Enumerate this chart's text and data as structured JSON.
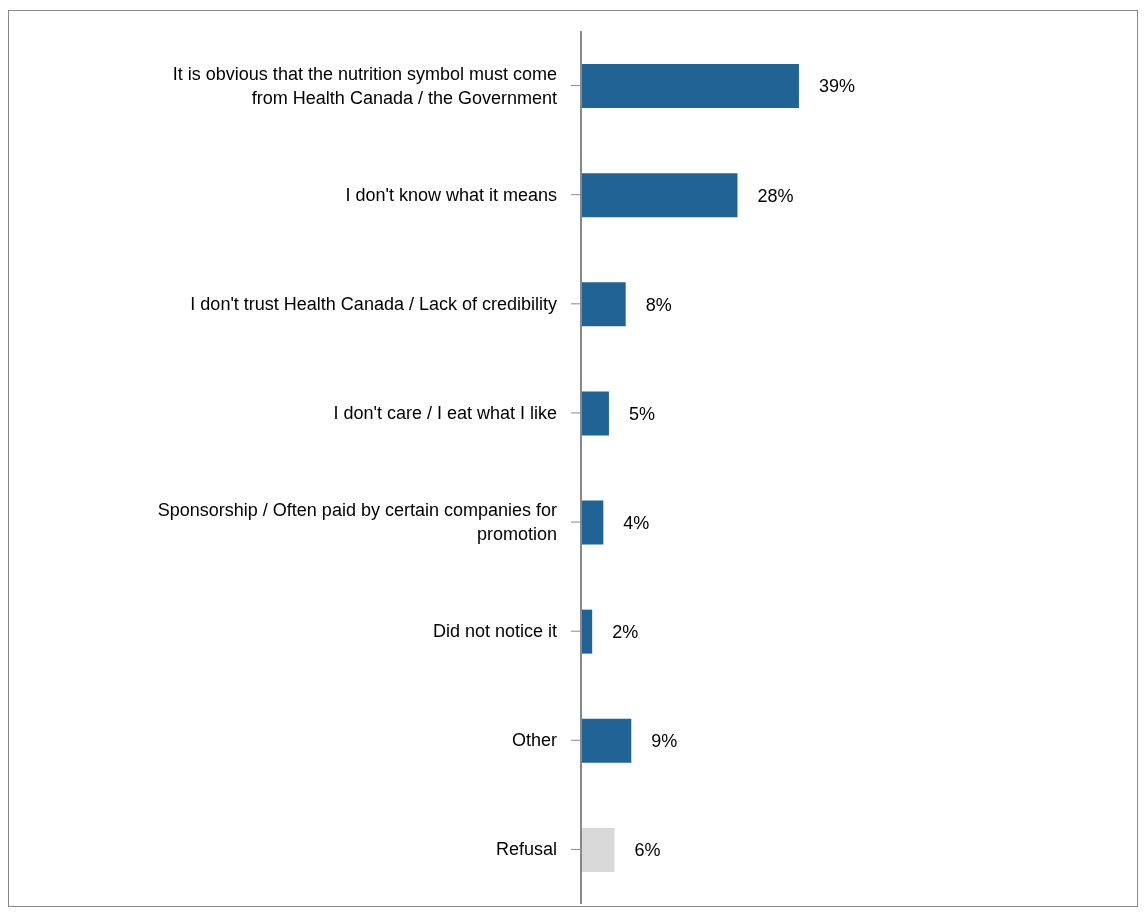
{
  "chart_data": {
    "type": "bar",
    "orientation": "horizontal",
    "value_labels": [
      "39%",
      "28%",
      "8%",
      "5%",
      "4%",
      "2%",
      "9%",
      "6%"
    ],
    "categories": [
      "It is obvious that the nutrition symbol must come from Health Canada / the Government",
      "I don't know what it means",
      "I don't trust Health Canada / Lack of credibility",
      "I don't care / I eat what I like",
      "Sponsorship / Often paid by certain companies for promotion",
      "Did not notice it",
      "Other",
      "Refusal"
    ],
    "values": [
      39,
      28,
      8,
      5,
      4,
      2,
      9,
      6
    ],
    "colors": [
      "#216394",
      "#216394",
      "#216394",
      "#216394",
      "#216394",
      "#216394",
      "#216394",
      "#d9d9d9"
    ]
  }
}
